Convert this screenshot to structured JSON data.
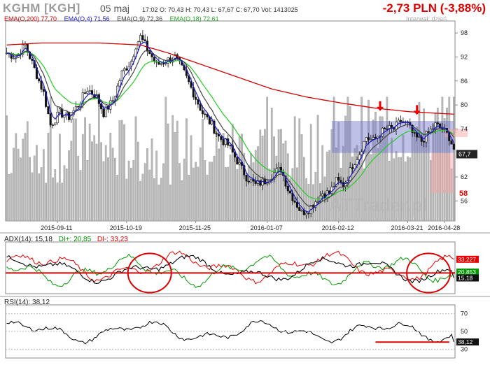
{
  "header": {
    "ticker": "KGHM [KGH]",
    "date": "05 maj",
    "ohlc": "17:02  O: 70,43  H: 70,43  L: 67,67  C: 67,70   Vol: 1413025",
    "change": "-2,73 PLN (-3,88%)",
    "interval": "Interwał: dzień",
    "watermark": "ATTrader.pl"
  },
  "colors": {
    "ema200": "#d40000",
    "ema4": "#1a1acc",
    "ema9": "#444444",
    "ema18": "#22cc22",
    "adx": "#000000",
    "di_plus": "#009900",
    "di_minus": "#ee0000",
    "rsi": "#000000",
    "zone": "#6f74c9",
    "candle": "#111111",
    "volume": "#b9b9b9"
  },
  "legend": {
    "ema200": "EMA(O,200) 77,70",
    "ema4": "EMA(O,4) 71,56",
    "ema9": "EMA(O,9) 72,36",
    "ema18": "EMA(O,18) 72,61"
  },
  "adx_label": {
    "adx": "ADX(14): 15,18",
    "di_plus": "DI+: 20,85",
    "di_minus": "DI-: 33,23"
  },
  "rsi_label": "RSI(14): 38,12",
  "chart_data": [
    {
      "type": "candlestick",
      "title": "KGHM [KGH]",
      "ylim": [
        51,
        101
      ],
      "y_ticks": [
        "98",
        "92",
        "86",
        "80",
        "74",
        "67,7",
        "62",
        "56"
      ],
      "x_ticks": [
        "2015-09-11",
        "2015-10-19",
        "2015-11-25",
        "2016-01-07",
        "2016-02-12",
        "2016-03-21",
        "2016-04-28"
      ],
      "price_label": "67,7",
      "annotation_level": "58",
      "price_path": [
        [
          0,
          93
        ],
        [
          4,
          92
        ],
        [
          8,
          95
        ],
        [
          12,
          89
        ],
        [
          16,
          83
        ],
        [
          19,
          75
        ],
        [
          23,
          78
        ],
        [
          27,
          77
        ],
        [
          31,
          80
        ],
        [
          35,
          84
        ],
        [
          39,
          82
        ],
        [
          42,
          78
        ],
        [
          46,
          81
        ],
        [
          50,
          88
        ],
        [
          54,
          91
        ],
        [
          56,
          95
        ],
        [
          58,
          97
        ],
        [
          61,
          94
        ],
        [
          65,
          90
        ],
        [
          69,
          91
        ],
        [
          73,
          92
        ],
        [
          77,
          88
        ],
        [
          81,
          83
        ],
        [
          85,
          78
        ],
        [
          89,
          75
        ],
        [
          92,
          72
        ],
        [
          96,
          70
        ],
        [
          100,
          66
        ],
        [
          104,
          62
        ],
        [
          108,
          60
        ],
        [
          112,
          61
        ],
        [
          116,
          63
        ],
        [
          119,
          64
        ],
        [
          122,
          59
        ],
        [
          125,
          56
        ],
        [
          128,
          53
        ],
        [
          131,
          54
        ],
        [
          134,
          56
        ],
        [
          137,
          58
        ],
        [
          140,
          58
        ],
        [
          143,
          61
        ],
        [
          146,
          60
        ],
        [
          148,
          62
        ],
        [
          150,
          65
        ],
        [
          153,
          68
        ],
        [
          156,
          72
        ],
        [
          159,
          71
        ],
        [
          162,
          73
        ],
        [
          165,
          74
        ],
        [
          168,
          74
        ],
        [
          171,
          76
        ],
        [
          174,
          75
        ],
        [
          177,
          72
        ],
        [
          180,
          71
        ],
        [
          183,
          73
        ],
        [
          186,
          75
        ],
        [
          189,
          74
        ],
        [
          192,
          72
        ],
        [
          194,
          69
        ]
      ],
      "ema200_path": [
        [
          0,
          95
        ],
        [
          15,
          95.5
        ],
        [
          40,
          95.5
        ],
        [
          58,
          95
        ],
        [
          70,
          93
        ],
        [
          85,
          90
        ],
        [
          100,
          87
        ],
        [
          115,
          84
        ],
        [
          130,
          82
        ],
        [
          145,
          80.5
        ],
        [
          160,
          79.2
        ],
        [
          175,
          78.3
        ],
        [
          194,
          77.7
        ]
      ],
      "zones": [
        {
          "x": [
            141,
            194
          ],
          "y": [
            68,
            76
          ]
        },
        {
          "x": [
            184,
            194
          ],
          "y": [
            58,
            68
          ]
        },
        {
          "x": [
            190,
            200
          ],
          "y": [
            72,
            74
          ]
        }
      ],
      "arrows": [
        [
          162,
          78.5
        ],
        [
          178,
          77.5
        ]
      ]
    },
    {
      "type": "line",
      "title": "ADX(14)",
      "ylim": [
        0,
        50
      ],
      "y_ticks": [
        "33,227",
        "20,853",
        "15,18"
      ],
      "series": [
        {
          "name": "ADX(14)",
          "last": "15,18"
        },
        {
          "name": "DI+",
          "last": "20,85"
        },
        {
          "name": "DI-",
          "last": "33,23"
        }
      ],
      "reference_line": 20,
      "circles": [
        [
          62,
          12
        ],
        [
          183,
          12
        ]
      ]
    },
    {
      "type": "line",
      "title": "RSI(14)",
      "ylim": [
        20,
        80
      ],
      "y_ticks": [
        "70",
        "50",
        "38,12",
        "30"
      ],
      "last": "38,12",
      "support_line": {
        "x": [
          160,
          192
        ],
        "y": 38
      }
    }
  ]
}
